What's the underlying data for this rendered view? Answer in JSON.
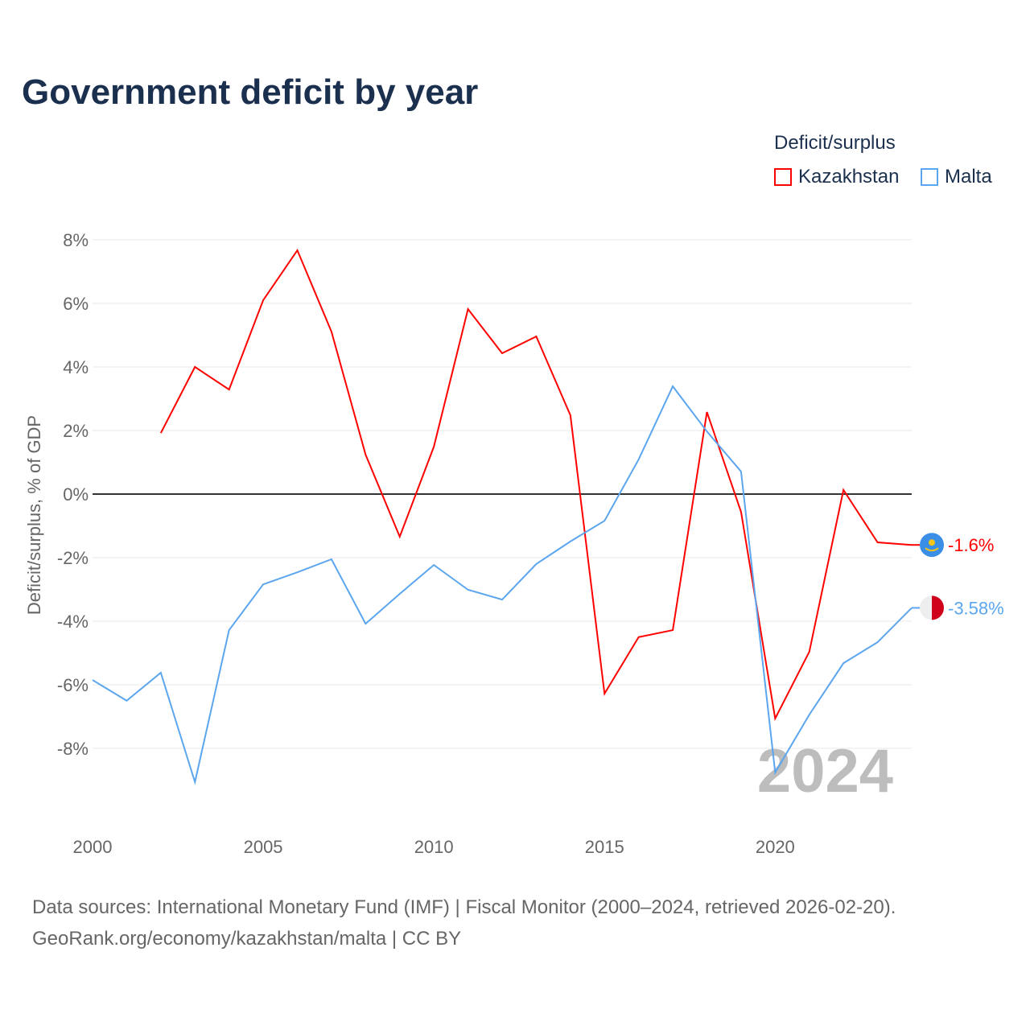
{
  "title": "Government deficit by year",
  "legend": {
    "title": "Deficit/surplus",
    "items": [
      "Kazakhstan",
      "Malta"
    ]
  },
  "footer": {
    "line1": "Data sources: International Monetary Fund (IMF) | Fiscal Monitor (2000–2024, retrieved 2026-02-20).",
    "line2": "GeoRank.org/economy/kazakhstan/malta | CC BY"
  },
  "chart_data": {
    "type": "line",
    "title": "Government deficit by year",
    "ylabel": "Deficit/surplus, % of GDP",
    "xlabel": "",
    "ylim": [
      -10,
      8
    ],
    "xlim": [
      2000,
      2024
    ],
    "yticks": [
      8,
      6,
      4,
      2,
      0,
      -2,
      -4,
      -6,
      -8
    ],
    "ytick_labels": [
      "8%",
      "6%",
      "4%",
      "2%",
      "0%",
      "-2%",
      "-4%",
      "-6%",
      "-8%"
    ],
    "xticks": [
      2000,
      2005,
      2010,
      2015,
      2020
    ],
    "xtick_labels": [
      "2000",
      "2005",
      "2010",
      "2015",
      "2020"
    ],
    "watermark": "2024",
    "series": [
      {
        "name": "Kazakhstan",
        "color": "#ff0000",
        "end_label": "-1.6%",
        "x": [
          2002,
          2003,
          2004,
          2005,
          2006,
          2007,
          2008,
          2009,
          2010,
          2011,
          2012,
          2013,
          2014,
          2015,
          2016,
          2017,
          2018,
          2019,
          2020,
          2021,
          2022,
          2023,
          2024
        ],
        "values": [
          1.92,
          4.0,
          3.29,
          6.1,
          7.67,
          5.11,
          1.24,
          -1.34,
          1.49,
          5.82,
          4.43,
          4.96,
          2.48,
          -6.28,
          -4.5,
          -4.28,
          2.58,
          -0.56,
          -7.06,
          -4.96,
          0.13,
          -1.52,
          -1.6
        ]
      },
      {
        "name": "Malta",
        "color": "#5ba6ee",
        "end_label": "-3.58%",
        "x": [
          2000,
          2001,
          2002,
          2003,
          2004,
          2005,
          2006,
          2007,
          2008,
          2009,
          2010,
          2011,
          2012,
          2013,
          2014,
          2015,
          2016,
          2017,
          2018,
          2019,
          2020,
          2021,
          2022,
          2023,
          2024
        ],
        "values": [
          -5.85,
          -6.5,
          -5.62,
          -9.06,
          -4.28,
          -2.84,
          -2.46,
          -2.05,
          -4.08,
          -3.14,
          -2.23,
          -3.01,
          -3.32,
          -2.2,
          -1.49,
          -0.84,
          1.09,
          3.39,
          1.97,
          0.71,
          -8.76,
          -6.94,
          -5.32,
          -4.66,
          -3.58
        ]
      }
    ]
  }
}
